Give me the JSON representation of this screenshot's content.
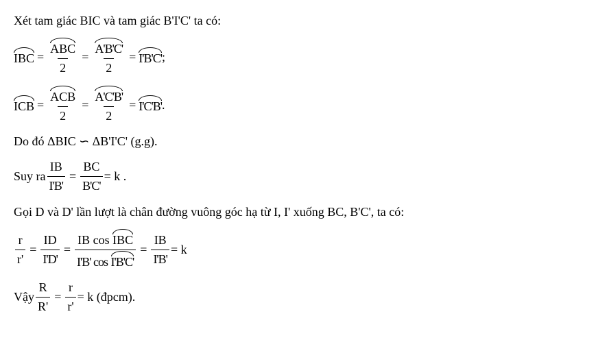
{
  "line1": "Xét tam giác BIC và tam giác B'I'C' ta có:",
  "eq1": {
    "lhs_arc": "IBC",
    "f1_num_arc": "ABC",
    "f1_den": "2",
    "f2_num_arc": "A'B'C'",
    "f2_den": "2",
    "rhs_arc": "I'B'C'",
    "tail": ";"
  },
  "eq2": {
    "lhs_arc": "ICB",
    "f1_num_arc": "ACB",
    "f1_den": "2",
    "f2_num_arc": "A'C'B'",
    "f2_den": "2",
    "rhs_arc": "I'C'B'",
    "tail": "."
  },
  "line4": "Do đó ΔBIC ∽ ΔB'I'C' (g.g).",
  "eq3": {
    "pre": "Suy ra ",
    "f1_num": "IB",
    "f1_den": "I'B'",
    "f2_num": "BC",
    "f2_den": "B'C'",
    "tail": "= k ."
  },
  "line6": "Gọi D và D' lần lượt là chân đường vuông góc hạ từ I, I' xuống BC, B'C', ta có:",
  "eq4": {
    "f1_num": "r",
    "f1_den": "r'",
    "f2_num": "ID",
    "f2_den": "I'D'",
    "f3_num_pre": "IB cos",
    "f3_num_arc": "IBC",
    "f3_den_pre": "I'B' cos",
    "f3_den_arc": "I'B'C'",
    "f4_num": "IB",
    "f4_den": "I'B'",
    "tail": "= k"
  },
  "eq5": {
    "pre": "Vậy ",
    "f1_num": "R",
    "f1_den": "R'",
    "f2_num": "r",
    "f2_den": "r'",
    "tail": "= k  (đpcm)."
  }
}
